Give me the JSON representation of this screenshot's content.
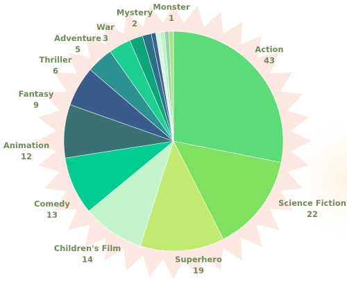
{
  "chart_data": {
    "type": "pie",
    "order": "largest-first-clockwise-from-top",
    "slices": [
      {
        "label": "Action",
        "value": 43,
        "color": "#5ddb79"
      },
      {
        "label": "Science Fiction",
        "value": 22,
        "color": "#80e060"
      },
      {
        "label": "Superhero",
        "value": 19,
        "color": "#c3ea70"
      },
      {
        "label": "Children's Film",
        "value": 14,
        "color": "#c2f5c9"
      },
      {
        "label": "Comedy",
        "value": 13,
        "color": "#00cc92"
      },
      {
        "label": "Animation",
        "value": 12,
        "color": "#3a7173"
      },
      {
        "label": "Fantasy",
        "value": 9,
        "color": "#3a5c8c"
      },
      {
        "label": "Thriller",
        "value": 6,
        "color": "#2b9191"
      },
      {
        "label": "Adventure",
        "value": 5,
        "color": "#1ecf93"
      },
      {
        "label": "War",
        "value": 3,
        "color": "#0da57a"
      },
      {
        "label": "Mystery",
        "value": 2,
        "color": "#2d6e8a"
      },
      {
        "label": "Monster",
        "value": 1,
        "color": "#3e5e8d"
      },
      {
        "label": "",
        "value": 1,
        "color": "#d8f6dc"
      },
      {
        "label": "",
        "value": 1,
        "color": "#bff2ca"
      },
      {
        "label": "",
        "value": 1,
        "color": "#96d6a6"
      },
      {
        "label": "",
        "value": 1,
        "color": "#a6e58a"
      }
    ],
    "label_color": "#6f8a5a",
    "background_star_color": "#fde8e2"
  }
}
